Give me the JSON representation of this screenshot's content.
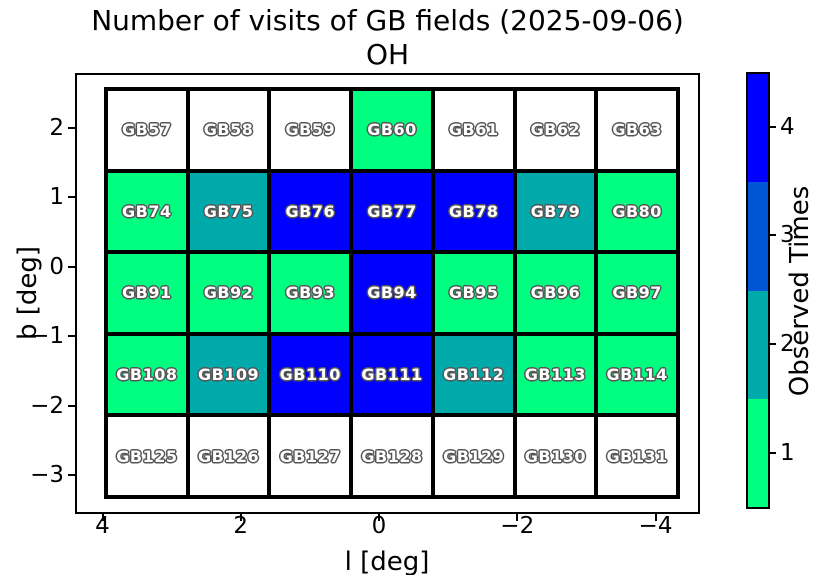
{
  "title": {
    "line1": "Number of visits of GB fields (2025-09-06)",
    "line2": "OH"
  },
  "axes": {
    "xlabel": "l [deg]",
    "ylabel": "b [deg]",
    "xtick_labels": [
      "4",
      "2",
      "0",
      "−2",
      "−4"
    ],
    "ytick_labels": [
      "2",
      "1",
      "0",
      "−1",
      "−2",
      "−3"
    ]
  },
  "colorbar": {
    "label": "Observed Times",
    "tick_labels_top_to_bottom": [
      "4",
      "3",
      "2",
      "1"
    ],
    "segment_colors_top_to_bottom": [
      "#0000FF",
      "#0055D4",
      "#00AAAA",
      "#00FF80"
    ]
  },
  "value_colors": {
    "0": "#FFFFFF",
    "1": "#00FF80",
    "2": "#00AAAA",
    "3": "#0055D4",
    "4": "#0000FF"
  },
  "chart_data": {
    "type": "heatmap",
    "title": "Number of visits of GB fields (2025-09-06)",
    "subtitle": "OH",
    "xlabel": "l [deg]",
    "ylabel": "b [deg]",
    "xticks": [
      4,
      2,
      0,
      -2,
      -4
    ],
    "yticks": [
      2,
      1,
      0,
      -1,
      -2,
      -3
    ],
    "x_axis_reversed": true,
    "grid_on": false,
    "colorbar_label": "Observed Times",
    "colorbar_levels": [
      1,
      2,
      3,
      4
    ],
    "colorbar_colors": [
      "#00FF80",
      "#00AAAA",
      "#0055D4",
      "#0000FF"
    ],
    "colorbar_position": "right",
    "unobserved_color": "#FFFFFF",
    "l_centers_approx": [
      3.4,
      2.2,
      1.0,
      -0.2,
      -1.4,
      -2.6,
      -3.8
    ],
    "rows": [
      {
        "b_approx": 2.0,
        "fields": [
          "GB57",
          "GB58",
          "GB59",
          "GB60",
          "GB61",
          "GB62",
          "GB63"
        ],
        "visits": [
          0,
          0,
          0,
          1,
          0,
          0,
          0
        ]
      },
      {
        "b_approx": 0.8,
        "fields": [
          "GB74",
          "GB75",
          "GB76",
          "GB77",
          "GB78",
          "GB79",
          "GB80"
        ],
        "visits": [
          1,
          2,
          4,
          4,
          4,
          2,
          1
        ]
      },
      {
        "b_approx": -0.4,
        "fields": [
          "GB91",
          "GB92",
          "GB93",
          "GB94",
          "GB95",
          "GB96",
          "GB97"
        ],
        "visits": [
          1,
          1,
          1,
          4,
          1,
          1,
          1
        ]
      },
      {
        "b_approx": -1.6,
        "fields": [
          "GB108",
          "GB109",
          "GB110",
          "GB111",
          "GB112",
          "GB113",
          "GB114"
        ],
        "visits": [
          1,
          2,
          4,
          4,
          2,
          1,
          1
        ]
      },
      {
        "b_approx": -2.7,
        "fields": [
          "GB125",
          "GB126",
          "GB127",
          "GB128",
          "GB129",
          "GB130",
          "GB131"
        ],
        "visits": [
          0,
          0,
          0,
          0,
          0,
          0,
          0
        ]
      }
    ]
  }
}
